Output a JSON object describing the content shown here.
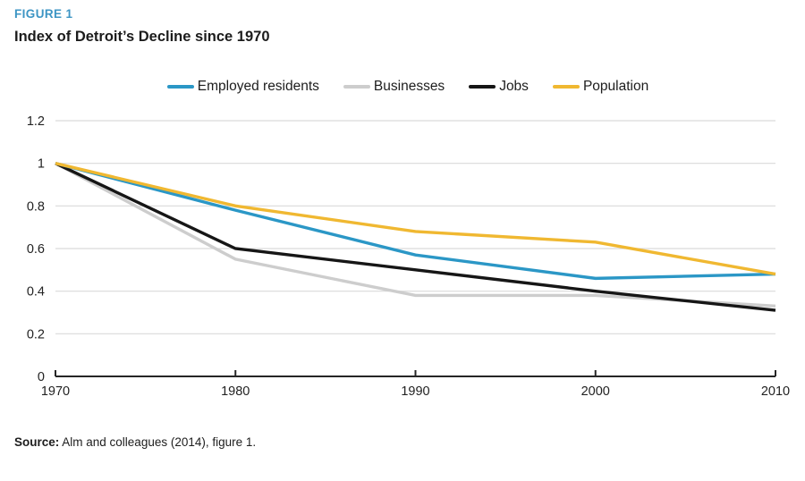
{
  "figure_label": "FIGURE 1",
  "title": "Index of Detroit’s Decline since 1970",
  "source": {
    "prefix": "Source:",
    "text": " Alm and colleagues (2014), figure 1."
  },
  "colors": {
    "figure_label_blue": "#3d95c4",
    "grid": "#d9d9d9",
    "axis": "#262626",
    "text": "#1d1d1d"
  },
  "chart_data": {
    "type": "line",
    "x": [
      1970,
      1980,
      1990,
      2000,
      2010
    ],
    "xticks": [
      "1970",
      "1980",
      "1990",
      "2000",
      "2010"
    ],
    "yticks": [
      0,
      0.2,
      0.4,
      0.6,
      0.8,
      1,
      1.2
    ],
    "ylim": [
      0,
      1.2
    ],
    "grid": true,
    "legend_position": "top",
    "title": "Index of Detroit’s Decline since 1970",
    "xlabel": "",
    "ylabel": "",
    "series": [
      {
        "name": "Employed residents",
        "color": "#2b97c6",
        "values": [
          1.0,
          0.78,
          0.57,
          0.46,
          0.48
        ]
      },
      {
        "name": "Businesses",
        "color": "#cdcdcd",
        "values": [
          1.0,
          0.55,
          0.38,
          0.38,
          0.33
        ]
      },
      {
        "name": "Jobs",
        "color": "#161616",
        "values": [
          1.0,
          0.6,
          0.5,
          0.4,
          0.31
        ]
      },
      {
        "name": "Population",
        "color": "#f0b831",
        "values": [
          1.0,
          0.8,
          0.68,
          0.63,
          0.48
        ]
      }
    ]
  }
}
